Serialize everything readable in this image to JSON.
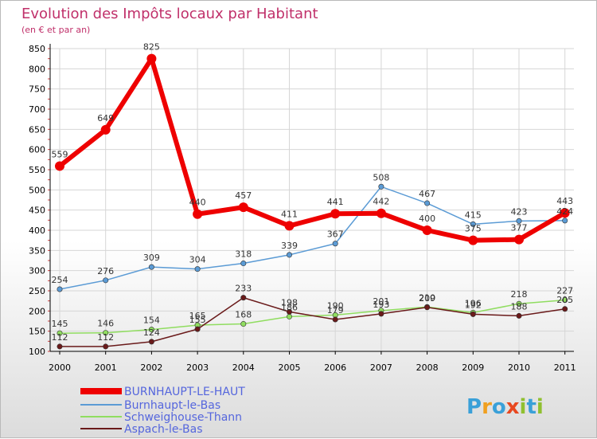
{
  "header": {
    "title": "Evolution des Impôts locaux par Habitant",
    "subtitle": "(en € et par an)"
  },
  "branding": {
    "logo_text": "Proxiti"
  },
  "colors": {
    "title": "#c0306a",
    "legend_text": "#5566dd",
    "axis": "#000000",
    "grid": "#d6d6d6"
  },
  "chart_data": {
    "type": "line",
    "title": "Evolution des Impôts locaux par Habitant",
    "subtitle": "(en € et par an)",
    "x": [
      2000,
      2001,
      2002,
      2003,
      2004,
      2005,
      2006,
      2007,
      2008,
      2009,
      2010,
      2011
    ],
    "ylim": [
      100,
      850
    ],
    "yticks": [
      100,
      150,
      200,
      250,
      300,
      350,
      400,
      450,
      500,
      550,
      600,
      650,
      700,
      750,
      800,
      850
    ],
    "grid": true,
    "legend_position": "bottom-left",
    "series": [
      {
        "name": "BURNHAUPT-LE-HAUT",
        "color": "#ee0000",
        "emphasis": true,
        "values": [
          559,
          649,
          825,
          440,
          457,
          411,
          441,
          442,
          400,
          375,
          377,
          443
        ]
      },
      {
        "name": "Burnhaupt-le-Bas",
        "color": "#5b9bd5",
        "values": [
          254,
          276,
          309,
          304,
          318,
          339,
          367,
          508,
          467,
          415,
          423,
          424
        ]
      },
      {
        "name": "Schweighouse-Thann",
        "color": "#90dd60",
        "values": [
          145,
          146,
          154,
          165,
          168,
          186,
          190,
          201,
          210,
          196,
          218,
          227
        ]
      },
      {
        "name": "Aspach-le-Bas",
        "color": "#6a1a1a",
        "values": [
          112,
          112,
          124,
          155,
          233,
          198,
          179,
          193,
          209,
          192,
          188,
          205
        ]
      }
    ]
  }
}
